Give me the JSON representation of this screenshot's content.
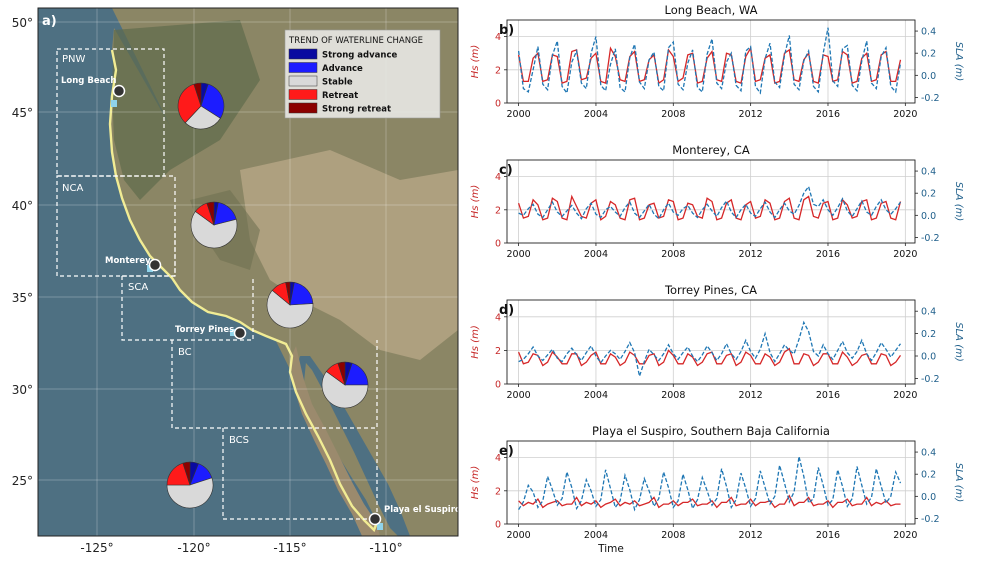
{
  "map": {
    "panel_label": "a)",
    "lat_ticks": [
      "50°",
      "45°",
      "40°",
      "35°",
      "30°",
      "25°"
    ],
    "lon_ticks": [
      "-125°",
      "-120°",
      "-115°",
      "-110°"
    ],
    "legend": {
      "title": "TREND OF WATERLINE CHANGE",
      "items": [
        {
          "label": "Strong advance",
          "color": "#0a0aa0"
        },
        {
          "label": "Advance",
          "color": "#1c1cff"
        },
        {
          "label": "Stable",
          "color": "#d9d9d9"
        },
        {
          "label": "Retreat",
          "color": "#ff1a1a"
        },
        {
          "label": "Strong retreat",
          "color": "#8b0000"
        }
      ]
    },
    "regions": [
      {
        "label": "PNW"
      },
      {
        "label": "NCA"
      },
      {
        "label": "SCA"
      },
      {
        "label": "BC"
      },
      {
        "label": "BCS"
      }
    ],
    "sites": [
      {
        "label": "Long Beach"
      },
      {
        "label": "Monterey"
      },
      {
        "label": "Torrey Pines"
      },
      {
        "label": "Playa el Suspiro"
      }
    ],
    "pies": [
      {
        "region": "PNW",
        "values": [
          0.05,
          0.29,
          0.28,
          0.33,
          0.05
        ]
      },
      {
        "region": "NCA",
        "values": [
          0.03,
          0.18,
          0.64,
          0.1,
          0.05
        ]
      },
      {
        "region": "SCA",
        "values": [
          0.03,
          0.21,
          0.62,
          0.11,
          0.03
        ]
      },
      {
        "region": "BC",
        "values": [
          0.05,
          0.2,
          0.6,
          0.1,
          0.05
        ]
      },
      {
        "region": "BCS",
        "values": [
          0.06,
          0.14,
          0.55,
          0.2,
          0.05
        ]
      }
    ]
  },
  "chart_data": [
    {
      "type": "line",
      "panel": "b)",
      "title": "Long Beach, WA",
      "xlabel": "",
      "ylabel": "Hs (m)",
      "ylabel2": "SLA (m)",
      "ylim": [
        0,
        5
      ],
      "ylim2": [
        -0.25,
        0.5
      ],
      "yticks": [
        0,
        2,
        4
      ],
      "yticks2": [
        -0.2,
        0.0,
        0.2,
        0.4
      ],
      "xlim": [
        1999.4,
        2020.5
      ],
      "xticks": [
        2000,
        2004,
        2008,
        2012,
        2016,
        2020
      ],
      "grid": true,
      "series": [
        {
          "color": "#d62728",
          "axis": "left",
          "style": "solid",
          "x_start": 2000.0,
          "x_step": 0.25,
          "values": [
            2.9,
            1.3,
            1.3,
            2.7,
            3.0,
            1.3,
            1.4,
            2.9,
            2.8,
            1.2,
            1.3,
            3.1,
            3.2,
            1.4,
            1.5,
            2.7,
            3.0,
            1.3,
            1.2,
            3.3,
            2.8,
            1.4,
            1.3,
            2.8,
            3.1,
            1.3,
            1.4,
            2.6,
            2.9,
            1.2,
            1.4,
            3.2,
            2.8,
            1.3,
            1.5,
            2.9,
            3.0,
            1.2,
            1.3,
            2.7,
            3.1,
            1.4,
            1.3,
            3.0,
            2.9,
            1.3,
            1.2,
            2.8,
            3.3,
            1.3,
            1.4,
            2.7,
            2.9,
            1.2,
            1.3,
            3.0,
            3.2,
            1.4,
            1.3,
            2.6,
            3.0,
            1.3,
            1.2,
            2.9,
            2.8,
            1.3,
            1.4,
            3.1,
            2.9,
            1.2,
            1.3,
            2.7,
            3.0,
            1.3,
            1.4,
            2.9,
            3.1,
            1.3,
            1.3,
            2.6
          ]
        },
        {
          "color": "#1f77b4",
          "axis": "right",
          "style": "dashed",
          "x_start": 2000.0,
          "x_step": 0.25,
          "values": [
            0.22,
            -0.12,
            -0.15,
            0.05,
            0.26,
            -0.08,
            -0.13,
            0.18,
            0.31,
            -0.1,
            -0.16,
            0.12,
            0.22,
            -0.07,
            -0.12,
            0.2,
            0.35,
            -0.09,
            -0.14,
            0.1,
            0.24,
            -0.11,
            -0.15,
            0.16,
            0.28,
            -0.06,
            -0.12,
            0.14,
            0.21,
            -0.1,
            -0.14,
            0.25,
            0.3,
            -0.08,
            -0.13,
            0.11,
            0.23,
            -0.11,
            -0.15,
            0.19,
            0.33,
            -0.07,
            -0.12,
            0.12,
            0.2,
            -0.09,
            -0.14,
            0.22,
            0.26,
            -0.1,
            -0.16,
            0.15,
            0.29,
            -0.06,
            -0.11,
            0.18,
            0.36,
            -0.08,
            -0.13,
            0.13,
            0.22,
            -0.1,
            -0.15,
            0.2,
            0.43,
            -0.05,
            -0.1,
            0.24,
            0.27,
            -0.09,
            -0.14,
            0.13,
            0.31,
            -0.07,
            -0.12,
            0.17,
            0.25,
            -0.1,
            -0.15,
            0.11
          ]
        }
      ]
    },
    {
      "type": "line",
      "panel": "c)",
      "title": "Monterey, CA",
      "xlabel": "",
      "ylabel": "Hs (m)",
      "ylabel2": "SLA (m)",
      "ylim": [
        0,
        5
      ],
      "ylim2": [
        -0.25,
        0.5
      ],
      "yticks": [
        0,
        2,
        4
      ],
      "yticks2": [
        -0.2,
        0.0,
        0.2,
        0.4
      ],
      "xlim": [
        1999.4,
        2020.5
      ],
      "xticks": [
        2000,
        2004,
        2008,
        2012,
        2016,
        2020
      ],
      "grid": true,
      "series": [
        {
          "color": "#d62728",
          "axis": "left",
          "style": "solid",
          "x_start": 2000.0,
          "x_step": 0.25,
          "values": [
            2.4,
            1.5,
            1.6,
            2.6,
            2.3,
            1.4,
            1.5,
            2.7,
            2.5,
            1.5,
            1.4,
            2.8,
            2.2,
            1.6,
            1.5,
            2.4,
            2.6,
            1.4,
            1.6,
            2.5,
            2.3,
            1.5,
            1.4,
            2.6,
            2.7,
            1.4,
            1.5,
            2.3,
            2.4,
            1.5,
            1.6,
            2.6,
            2.5,
            1.4,
            1.5,
            2.4,
            2.3,
            1.6,
            1.5,
            2.7,
            2.5,
            1.4,
            1.5,
            2.4,
            2.6,
            1.5,
            1.4,
            2.3,
            2.5,
            1.5,
            1.6,
            2.6,
            2.4,
            1.4,
            1.5,
            2.5,
            2.7,
            1.5,
            1.4,
            2.6,
            2.8,
            1.6,
            1.5,
            2.4,
            2.5,
            1.4,
            1.5,
            2.6,
            2.3,
            1.5,
            1.6,
            2.5,
            2.6,
            1.4,
            1.5,
            2.4,
            2.5,
            1.5,
            1.4,
            2.5
          ]
        },
        {
          "color": "#1f77b4",
          "axis": "right",
          "style": "dashed",
          "x_start": 2000.0,
          "x_step": 0.25,
          "values": [
            0.02,
            0.0,
            0.06,
            0.1,
            0.01,
            -0.02,
            0.05,
            0.12,
            0.03,
            -0.01,
            0.04,
            0.09,
            0.02,
            -0.03,
            0.06,
            0.11,
            0.01,
            -0.02,
            0.05,
            0.08,
            0.03,
            -0.01,
            0.07,
            0.12,
            0.02,
            -0.02,
            0.04,
            0.1,
            0.01,
            -0.03,
            0.05,
            0.11,
            0.03,
            0.0,
            0.06,
            0.09,
            0.02,
            -0.02,
            0.05,
            0.1,
            0.04,
            -0.01,
            0.07,
            0.13,
            0.03,
            -0.02,
            0.05,
            0.1,
            0.02,
            -0.01,
            0.06,
            0.12,
            0.03,
            -0.02,
            0.05,
            0.11,
            0.04,
            0.01,
            0.09,
            0.2,
            0.26,
            0.1,
            0.08,
            0.14,
            0.05,
            0.0,
            0.07,
            0.15,
            0.04,
            -0.01,
            0.06,
            0.13,
            0.03,
            0.0,
            0.08,
            0.14,
            0.05,
            0.01,
            0.06,
            0.12
          ]
        }
      ]
    },
    {
      "type": "line",
      "panel": "d)",
      "title": "Torrey Pines, CA",
      "xlabel": "",
      "ylabel": "Hs (m)",
      "ylabel2": "SLA (m)",
      "ylim": [
        0,
        5
      ],
      "ylim2": [
        -0.25,
        0.5
      ],
      "yticks": [
        0,
        2,
        4
      ],
      "yticks2": [
        -0.2,
        0.0,
        0.2,
        0.4
      ],
      "xlim": [
        1999.4,
        2020.5
      ],
      "xticks": [
        2000,
        2004,
        2008,
        2012,
        2016,
        2020
      ],
      "grid": true,
      "series": [
        {
          "color": "#d62728",
          "axis": "left",
          "style": "solid",
          "x_start": 2000.0,
          "x_step": 0.25,
          "values": [
            1.9,
            1.2,
            1.3,
            1.8,
            1.7,
            1.1,
            1.3,
            1.9,
            1.6,
            1.2,
            1.2,
            1.8,
            1.8,
            1.1,
            1.3,
            1.7,
            1.9,
            1.2,
            1.2,
            1.8,
            1.6,
            1.1,
            1.3,
            1.9,
            1.7,
            1.2,
            1.2,
            1.7,
            1.8,
            1.1,
            1.3,
            2.0,
            1.7,
            1.2,
            1.2,
            1.8,
            1.6,
            1.1,
            1.3,
            1.8,
            1.9,
            1.2,
            1.2,
            1.7,
            1.8,
            1.1,
            1.3,
            1.9,
            1.7,
            1.2,
            1.2,
            1.8,
            1.6,
            1.1,
            1.3,
            1.9,
            2.1,
            1.2,
            1.2,
            1.8,
            1.7,
            1.1,
            1.3,
            1.8,
            1.8,
            1.2,
            1.2,
            1.9,
            1.6,
            1.1,
            1.3,
            1.7,
            1.8,
            1.2,
            1.2,
            1.8,
            1.7,
            1.1,
            1.3,
            1.7
          ]
        },
        {
          "color": "#1f77b4",
          "axis": "right",
          "style": "dashed",
          "x_start": 2000.0,
          "x_step": 0.25,
          "values": [
            -0.05,
            -0.03,
            0.02,
            0.08,
            0.0,
            -0.04,
            0.01,
            0.06,
            -0.02,
            -0.05,
            0.02,
            0.07,
            0.01,
            -0.04,
            0.03,
            0.09,
            0.0,
            -0.06,
            0.0,
            0.05,
            0.02,
            -0.03,
            0.04,
            0.12,
            0.03,
            -0.18,
            -0.05,
            0.06,
            0.01,
            -0.04,
            0.02,
            0.1,
            0.02,
            -0.03,
            0.03,
            0.08,
            0.0,
            -0.05,
            0.01,
            0.09,
            0.03,
            -0.04,
            0.02,
            0.11,
            0.02,
            -0.03,
            0.04,
            0.14,
            0.04,
            -0.02,
            0.06,
            0.2,
            0.03,
            -0.05,
            0.02,
            0.1,
            0.05,
            0.02,
            0.15,
            0.3,
            0.22,
            0.04,
            0.0,
            0.1,
            0.02,
            -0.03,
            0.05,
            0.13,
            0.03,
            -0.02,
            0.04,
            0.14,
            0.02,
            -0.04,
            0.03,
            0.12,
            0.06,
            -0.01,
            0.05,
            0.11
          ]
        }
      ]
    },
    {
      "type": "line",
      "panel": "e)",
      "title": "Playa el Suspiro, Southern Baja California",
      "xlabel": "Time",
      "ylabel": "Hs (m)",
      "ylabel2": "SLA (m)",
      "ylim": [
        0,
        5
      ],
      "ylim2": [
        -0.25,
        0.5
      ],
      "yticks": [
        0,
        2,
        4
      ],
      "yticks2": [
        -0.2,
        0.0,
        0.2,
        0.4
      ],
      "xlim": [
        1999.4,
        2020.5
      ],
      "xticks": [
        2000,
        2004,
        2008,
        2012,
        2016,
        2020
      ],
      "grid": true,
      "series": [
        {
          "color": "#d62728",
          "axis": "left",
          "style": "solid",
          "x_start": 2000.0,
          "x_step": 0.25,
          "values": [
            1.4,
            1.1,
            1.3,
            1.2,
            1.5,
            1.0,
            1.2,
            1.3,
            1.4,
            1.1,
            1.2,
            1.2,
            1.6,
            1.1,
            1.3,
            1.2,
            1.4,
            1.0,
            1.2,
            1.3,
            1.5,
            1.1,
            1.3,
            1.2,
            1.4,
            1.1,
            1.2,
            1.3,
            1.6,
            1.0,
            1.2,
            1.2,
            1.4,
            1.1,
            1.3,
            1.3,
            1.5,
            1.1,
            1.2,
            1.2,
            1.4,
            1.0,
            1.3,
            1.3,
            1.6,
            1.1,
            1.2,
            1.2,
            1.5,
            1.1,
            1.3,
            1.3,
            1.4,
            1.0,
            1.2,
            1.2,
            1.7,
            1.1,
            1.3,
            1.3,
            1.6,
            1.1,
            1.2,
            1.2,
            1.4,
            1.0,
            1.3,
            1.3,
            1.5,
            1.1,
            1.2,
            1.2,
            1.6,
            1.1,
            1.3,
            1.2,
            1.4,
            1.1,
            1.2,
            1.2
          ]
        },
        {
          "color": "#1f77b4",
          "axis": "right",
          "style": "dashed",
          "x_start": 2000.0,
          "x_step": 0.25,
          "values": [
            -0.12,
            -0.05,
            0.1,
            0.04,
            -0.1,
            -0.04,
            0.18,
            0.06,
            -0.08,
            -0.02,
            0.22,
            0.08,
            -0.11,
            -0.04,
            0.15,
            0.05,
            -0.09,
            -0.03,
            0.24,
            0.07,
            -0.1,
            -0.04,
            0.19,
            0.06,
            -0.12,
            -0.03,
            0.16,
            0.05,
            -0.09,
            -0.02,
            0.22,
            0.08,
            -0.1,
            -0.04,
            0.2,
            0.06,
            -0.11,
            -0.03,
            0.17,
            0.05,
            -0.08,
            -0.02,
            0.25,
            0.09,
            -0.1,
            -0.03,
            0.21,
            0.07,
            -0.09,
            -0.02,
            0.23,
            0.08,
            -0.07,
            0.0,
            0.28,
            0.12,
            -0.05,
            0.04,
            0.36,
            0.18,
            -0.06,
            -0.02,
            0.26,
            0.1,
            -0.08,
            -0.03,
            0.24,
            0.09,
            -0.09,
            -0.02,
            0.27,
            0.1,
            -0.07,
            -0.01,
            0.25,
            0.09,
            -0.06,
            0.0,
            0.22,
            0.12
          ]
        }
      ]
    }
  ]
}
